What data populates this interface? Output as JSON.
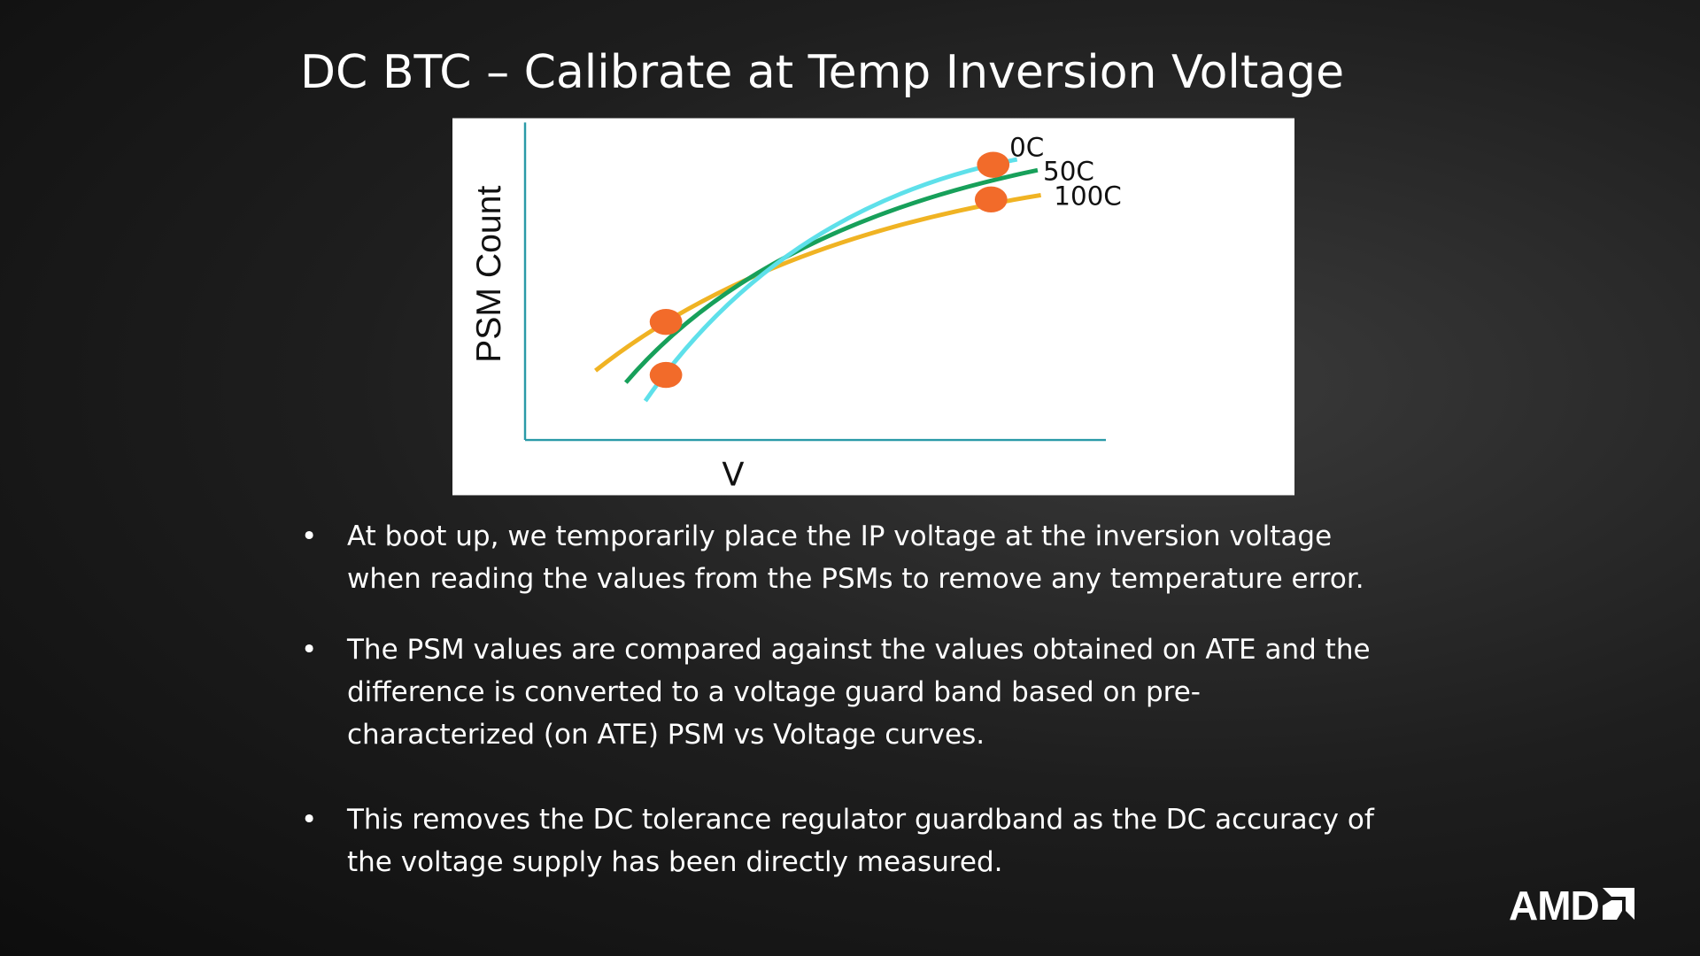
{
  "title": "DC BTC – Calibrate at Temp Inversion Voltage",
  "figure": {
    "y_label": "PSM Count",
    "x_label": "V",
    "curve_labels": [
      "0C",
      "50C",
      "100C"
    ]
  },
  "bullets": [
    [
      "At boot up, we temporarily place the IP voltage at the inversion voltage",
      "when reading the values from the PSMs to remove any temperature error."
    ],
    [
      "The PSM values are compared against the values obtained on ATE and the",
      "difference is converted to a voltage guard band based on pre-",
      "characterized (on ATE) PSM vs Voltage curves."
    ],
    [
      "This removes the DC tolerance regulator guardband as the DC accuracy of",
      "the voltage supply has been directly measured."
    ]
  ],
  "logo": "AMD"
}
